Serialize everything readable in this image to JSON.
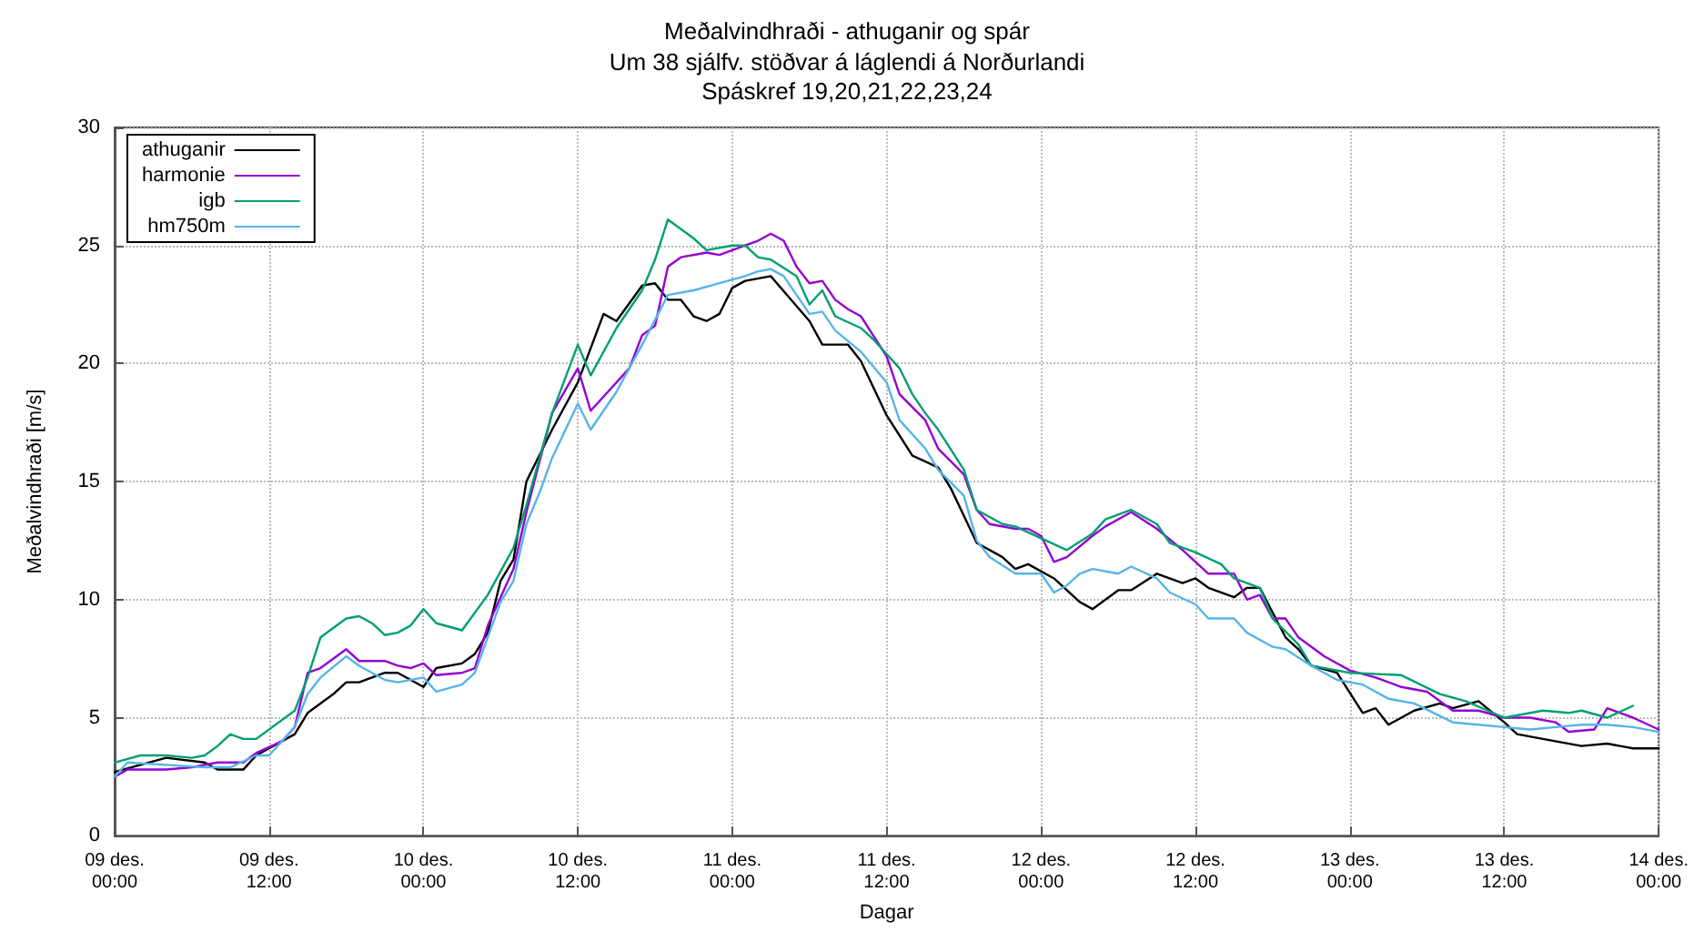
{
  "chart_data": {
    "type": "line",
    "title": "Meðalvindhraði - athuganir og spár",
    "subtitle": "Um 38 sjálfv. stöðvar á láglendi á Norðurlandi\nSpáskref 19,20,21,22,23,24",
    "xlabel": "Dagar",
    "ylabel": "Meðalvindhraði [m/s]",
    "xlim": [
      "--12-09T00:00",
      "--12-14T00:00"
    ],
    "xticks": [
      {
        "value": "--12-09T00:00",
        "label": "09 des.\n00:00"
      },
      {
        "value": "--12-09T12:00",
        "label": "09 des.\n12:00"
      },
      {
        "value": "--12-10T00:00",
        "label": "10 des.\n00:00"
      },
      {
        "value": "--12-10T12:00",
        "label": "10 des.\n12:00"
      },
      {
        "value": "--12-11T00:00",
        "label": "11 des.\n00:00"
      },
      {
        "value": "--12-11T12:00",
        "label": "11 des.\n12:00"
      },
      {
        "value": "--12-12T00:00",
        "label": "12 des.\n00:00"
      },
      {
        "value": "--12-12T12:00",
        "label": "12 des.\n12:00"
      },
      {
        "value": "--12-13T00:00",
        "label": "13 des.\n00:00"
      },
      {
        "value": "--12-13T12:00",
        "label": "13 des.\n12:00"
      },
      {
        "value": "--12-14T00:00",
        "label": "14 des.\n00:00"
      }
    ],
    "ylim": [
      0,
      30
    ],
    "yticks": [
      0,
      5,
      10,
      15,
      20,
      25,
      30
    ],
    "grid": true,
    "legend": "top left",
    "marker": "none",
    "line_style": "solid",
    "series": [
      {
        "name": "athuganir",
        "color": "#000000",
        "x": [
          "--12-09T00:00",
          "--12-09T04:00",
          "--12-09T07:00",
          "--12-09T08:00",
          "--12-09T10:00",
          "--12-09T11:00",
          "--12-09T14:00",
          "--12-09T15:00",
          "--12-09T17:00",
          "--12-09T18:00",
          "--12-09T19:00",
          "--12-09T21:00",
          "--12-09T22:00",
          "--12-10T00:00",
          "--12-10T01:00",
          "--12-10T03:00",
          "--12-10T04:00",
          "--12-10T05:00",
          "--12-10T06:00",
          "--12-10T07:00",
          "--12-10T08:00",
          "--12-10T10:00",
          "--12-10T12:00",
          "--12-10T14:00",
          "--12-10T15:00",
          "--12-10T17:00",
          "--12-10T18:00",
          "--12-10T19:00",
          "--12-10T20:00",
          "--12-10T21:00",
          "--12-10T22:00",
          "--12-10T23:00",
          "--12-11T00:00",
          "--12-11T01:00",
          "--12-11T03:00",
          "--12-11T06:00",
          "--12-11T07:00",
          "--12-11T09:00",
          "--12-11T10:00",
          "--12-11T12:00",
          "--12-11T14:00",
          "--12-11T16:00",
          "--12-11T17:00",
          "--12-11T19:00",
          "--12-11T21:00",
          "--12-11T22:00",
          "--12-11T23:00",
          "--12-12T01:00",
          "--12-12T03:00",
          "--12-12T04:00",
          "--12-12T06:00",
          "--12-12T07:00",
          "--12-12T09:00",
          "--12-12T11:00",
          "--12-12T12:00",
          "--12-12T13:00",
          "--12-12T15:00",
          "--12-12T16:00",
          "--12-12T17:00",
          "--12-12T19:00",
          "--12-12T20:00",
          "--12-12T21:00",
          "--12-12T23:00",
          "--12-13T01:00",
          "--12-13T02:00",
          "--12-13T03:00",
          "--12-13T05:00",
          "--12-13T07:00",
          "--12-13T08:00",
          "--12-13T10:00",
          "--12-13T12:00",
          "--12-13T13:00",
          "--12-13T15:00",
          "--12-13T18:00",
          "--12-13T20:00",
          "--12-13T22:00",
          "--12-14T00:00"
        ],
        "values": [
          2.7,
          3.3,
          3.1,
          2.8,
          2.8,
          3.4,
          4.3,
          5.2,
          6.0,
          6.5,
          6.5,
          6.9,
          6.9,
          6.3,
          7.1,
          7.3,
          7.7,
          8.6,
          10.8,
          11.7,
          15.0,
          17.2,
          19.2,
          22.1,
          21.8,
          23.3,
          23.4,
          22.7,
          22.7,
          22.0,
          21.8,
          22.1,
          23.2,
          23.5,
          23.7,
          21.8,
          20.8,
          20.8,
          20.1,
          17.8,
          16.1,
          15.6,
          14.7,
          12.4,
          11.8,
          11.3,
          11.5,
          10.9,
          9.9,
          9.6,
          10.4,
          10.4,
          11.1,
          10.7,
          10.9,
          10.5,
          10.1,
          10.5,
          10.5,
          8.4,
          7.9,
          7.2,
          6.9,
          5.2,
          5.4,
          4.7,
          5.3,
          5.6,
          5.4,
          5.7,
          4.8,
          4.3,
          4.1,
          3.8,
          3.9,
          3.7,
          3.7
        ]
      },
      {
        "name": "harmonie",
        "color": "#9400d3",
        "x": [
          "--12-09T00:00",
          "--12-09T01:00",
          "--12-09T04:00",
          "--12-09T06:00",
          "--12-09T08:00",
          "--12-09T10:00",
          "--12-09T11:00",
          "--12-09T13:00",
          "--12-09T14:00",
          "--12-09T15:00",
          "--12-09T16:00",
          "--12-09T18:00",
          "--12-09T19:00",
          "--12-09T21:00",
          "--12-09T22:00",
          "--12-09T23:00",
          "--12-10T00:00",
          "--12-10T01:00",
          "--12-10T03:00",
          "--12-10T04:00",
          "--12-10T05:00",
          "--12-10T07:00",
          "--12-10T08:00",
          "--12-10T10:00",
          "--12-10T12:00",
          "--12-10T13:00",
          "--12-10T14:00",
          "--12-10T16:00",
          "--12-10T17:00",
          "--12-10T18:00",
          "--12-10T19:00",
          "--12-10T20:00",
          "--12-10T22:00",
          "--12-10T23:00",
          "--12-11T01:00",
          "--12-11T02:00",
          "--12-11T03:00",
          "--12-11T04:00",
          "--12-11T05:00",
          "--12-11T06:00",
          "--12-11T07:00",
          "--12-11T08:00",
          "--12-11T09:00",
          "--12-11T10:00",
          "--12-11T12:00",
          "--12-11T13:00",
          "--12-11T15:00",
          "--12-11T16:00",
          "--12-11T18:00",
          "--12-11T19:00",
          "--12-11T20:00",
          "--12-11T22:00",
          "--12-11T23:00",
          "--12-12T00:00",
          "--12-12T01:00",
          "--12-12T02:00",
          "--12-12T04:00",
          "--12-12T05:00",
          "--12-12T07:00",
          "--12-12T09:00",
          "--12-12T11:00",
          "--12-12T13:00",
          "--12-12T15:00",
          "--12-12T16:00",
          "--12-12T17:00",
          "--12-12T18:00",
          "--12-12T19:00",
          "--12-12T20:00",
          "--12-12T22:00",
          "--12-13T00:00",
          "--12-13T02:00",
          "--12-13T04:00",
          "--12-13T06:00",
          "--12-13T08:00",
          "--12-13T10:00",
          "--12-13T12:00",
          "--12-13T14:00",
          "--12-13T16:00",
          "--12-13T17:00",
          "--12-13T19:00",
          "--12-13T20:00",
          "--12-13T22:00",
          "--12-14T00:00"
        ],
        "values": [
          2.5,
          2.8,
          2.8,
          2.9,
          3.1,
          3.1,
          3.5,
          4.0,
          4.6,
          6.9,
          7.1,
          7.9,
          7.4,
          7.4,
          7.2,
          7.1,
          7.3,
          6.8,
          6.9,
          7.1,
          8.9,
          11.3,
          13.7,
          17.9,
          19.8,
          18.0,
          18.6,
          19.8,
          21.2,
          21.6,
          24.1,
          24.5,
          24.7,
          24.6,
          25.0,
          25.2,
          25.5,
          25.2,
          24.1,
          23.4,
          23.5,
          22.7,
          22.3,
          22.0,
          20.3,
          18.7,
          17.6,
          16.4,
          15.3,
          13.8,
          13.2,
          13.0,
          13.0,
          12.7,
          11.6,
          11.8,
          12.7,
          13.1,
          13.7,
          13.0,
          12.1,
          11.1,
          11.1,
          10.0,
          10.2,
          9.2,
          9.2,
          8.4,
          7.6,
          7.0,
          6.7,
          6.3,
          6.1,
          5.3,
          5.3,
          5.0,
          5.0,
          4.8,
          4.4,
          4.5,
          5.4,
          5.0,
          4.5
        ]
      },
      {
        "name": "igb",
        "color": "#009e73",
        "x": [
          "--12-09T00:00",
          "--12-09T02:00",
          "--12-09T04:00",
          "--12-09T06:00",
          "--12-09T07:00",
          "--12-09T08:00",
          "--12-09T09:00",
          "--12-09T10:00",
          "--12-09T11:00",
          "--12-09T14:00",
          "--12-09T15:00",
          "--12-09T16:00",
          "--12-09T18:00",
          "--12-09T19:00",
          "--12-09T20:00",
          "--12-09T21:00",
          "--12-09T22:00",
          "--12-09T23:00",
          "--12-10T00:00",
          "--12-10T01:00",
          "--12-10T03:00",
          "--12-10T05:00",
          "--12-10T07:00",
          "--12-10T08:00",
          "--12-10T10:00",
          "--12-10T12:00",
          "--12-10T13:00",
          "--12-10T15:00",
          "--12-10T17:00",
          "--12-10T18:00",
          "--12-10T19:00",
          "--12-10T21:00",
          "--12-10T22:00",
          "--12-11T00:00",
          "--12-11T01:00",
          "--12-11T02:00",
          "--12-11T03:00",
          "--12-11T05:00",
          "--12-11T06:00",
          "--12-11T07:00",
          "--12-11T08:00",
          "--12-11T10:00",
          "--12-11T11:00",
          "--12-11T13:00",
          "--12-11T14:00",
          "--12-11T15:00",
          "--12-11T16:00",
          "--12-11T18:00",
          "--12-11T19:00",
          "--12-11T21:00",
          "--12-11T22:00",
          "--12-12T00:00",
          "--12-12T02:00",
          "--12-12T04:00",
          "--12-12T05:00",
          "--12-12T07:00",
          "--12-12T09:00",
          "--12-12T10:00",
          "--12-12T12:00",
          "--12-12T14:00",
          "--12-12T15:00",
          "--12-12T17:00",
          "--12-12T18:00",
          "--12-12T20:00",
          "--12-12T21:00",
          "--12-13T00:00",
          "--12-13T04:00",
          "--12-13T07:00",
          "--12-13T09:00",
          "--12-13T12:00",
          "--12-13T15:00",
          "--12-13T17:00",
          "--12-13T18:00",
          "--12-13T20:00",
          "--12-13T22:00"
        ],
        "values": [
          3.1,
          3.4,
          3.4,
          3.3,
          3.4,
          3.8,
          4.3,
          4.1,
          4.1,
          5.3,
          6.7,
          8.4,
          9.2,
          9.3,
          9.0,
          8.5,
          8.6,
          8.9,
          9.6,
          9.0,
          8.7,
          10.2,
          12.2,
          14.0,
          17.9,
          20.8,
          19.5,
          21.5,
          23.1,
          24.4,
          26.1,
          25.3,
          24.8,
          25.0,
          25.0,
          24.5,
          24.4,
          23.7,
          22.5,
          23.1,
          22.0,
          21.5,
          21.0,
          19.8,
          18.7,
          17.9,
          17.2,
          15.5,
          13.8,
          13.2,
          13.1,
          12.6,
          12.1,
          12.8,
          13.4,
          13.8,
          13.2,
          12.4,
          12.0,
          11.5,
          10.9,
          10.5,
          9.2,
          8.1,
          7.2,
          6.9,
          6.8,
          6.0,
          5.7,
          5.0,
          5.3,
          5.2,
          5.3,
          5.0,
          5.5
        ]
      },
      {
        "name": "hm750m",
        "color": "#56b4e9",
        "x": [
          "--12-09T00:00",
          "--12-09T01:00",
          "--12-09T04:00",
          "--12-09T07:00",
          "--12-09T09:00",
          "--12-09T11:00",
          "--12-09T12:00",
          "--12-09T14:00",
          "--12-09T15:00",
          "--12-09T16:00",
          "--12-09T18:00",
          "--12-09T19:00",
          "--12-09T21:00",
          "--12-09T22:00",
          "--12-10T00:00",
          "--12-10T01:00",
          "--12-10T03:00",
          "--12-10T04:00",
          "--12-10T06:00",
          "--12-10T07:00",
          "--12-10T08:00",
          "--12-10T09:00",
          "--12-10T10:00",
          "--12-10T12:00",
          "--12-10T13:00",
          "--12-10T15:00",
          "--12-10T17:00",
          "--12-10T19:00",
          "--12-10T21:00",
          "--12-10T23:00",
          "--12-11T01:00",
          "--12-11T02:00",
          "--12-11T03:00",
          "--12-11T04:00",
          "--12-11T06:00",
          "--12-11T07:00",
          "--12-11T08:00",
          "--12-11T10:00",
          "--12-11T12:00",
          "--12-11T13:00",
          "--12-11T15:00",
          "--12-11T16:00",
          "--12-11T18:00",
          "--12-11T19:00",
          "--12-11T20:00",
          "--12-11T22:00",
          "--12-12T00:00",
          "--12-12T01:00",
          "--12-12T02:00",
          "--12-12T03:00",
          "--12-12T04:00",
          "--12-12T06:00",
          "--12-12T07:00",
          "--12-12T09:00",
          "--12-12T10:00",
          "--12-12T12:00",
          "--12-12T13:00",
          "--12-12T15:00",
          "--12-12T16:00",
          "--12-12T18:00",
          "--12-12T19:00",
          "--12-12T21:00",
          "--12-12T23:00",
          "--12-13T01:00",
          "--12-13T03:00",
          "--12-13T05:00",
          "--12-13T08:00",
          "--12-13T10:00",
          "--12-13T12:00",
          "--12-13T14:00",
          "--12-13T16:00",
          "--12-13T18:00",
          "--12-13T20:00",
          "--12-13T22:00",
          "--12-14T00:00"
        ],
        "values": [
          2.5,
          3.1,
          3.0,
          2.9,
          2.9,
          3.4,
          3.4,
          4.6,
          6.0,
          6.7,
          7.6,
          7.2,
          6.6,
          6.5,
          6.7,
          6.1,
          6.4,
          6.9,
          9.9,
          10.8,
          13.2,
          14.5,
          16.0,
          18.3,
          17.2,
          18.8,
          20.8,
          22.9,
          23.1,
          23.4,
          23.7,
          23.9,
          24.0,
          23.7,
          22.1,
          22.2,
          21.4,
          20.5,
          19.2,
          17.6,
          16.4,
          15.5,
          14.4,
          12.5,
          11.8,
          11.1,
          11.1,
          10.3,
          10.6,
          11.1,
          11.3,
          11.1,
          11.4,
          10.9,
          10.3,
          9.8,
          9.2,
          9.2,
          8.6,
          8.0,
          7.9,
          7.2,
          6.6,
          6.4,
          5.8,
          5.6,
          4.8,
          4.7,
          4.6,
          4.5,
          4.6,
          4.7,
          4.7,
          4.6,
          4.4
        ]
      }
    ]
  }
}
